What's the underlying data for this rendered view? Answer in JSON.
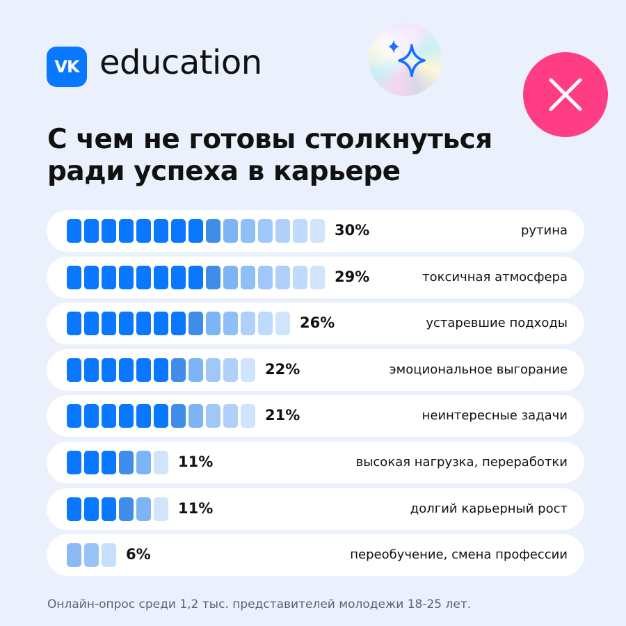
{
  "header": {
    "logo_mark": "VK",
    "logo_text": "education"
  },
  "title_lines": [
    "С чем не готовы столкнуться",
    "ради успеха в карьере"
  ],
  "icons": {
    "sparkle": "sparkle-icon",
    "close": "close-icon"
  },
  "colors": {
    "background": "#eaf1fc",
    "accent": "#0a77ff",
    "close_circle": "#ff3d85"
  },
  "chart_data": {
    "type": "bar",
    "categories": [
      "рутина",
      "токсичная атмосфера",
      "устаревшие подходы",
      "эмоциональное выгорание",
      "неинтересные задачи",
      "высокая нагрузка, переработки",
      "долгий карьерный рост",
      "переобучение, смена профессии"
    ],
    "values": [
      30,
      29,
      26,
      22,
      21,
      11,
      11,
      6
    ],
    "value_labels": [
      "30%",
      "29%",
      "26%",
      "22%",
      "21%",
      "11%",
      "11%",
      "6%"
    ],
    "unit": "%"
  },
  "footnote": "Онлайн-опрос среди 1,2 тыс. представителей молодежи 18-25 лет."
}
